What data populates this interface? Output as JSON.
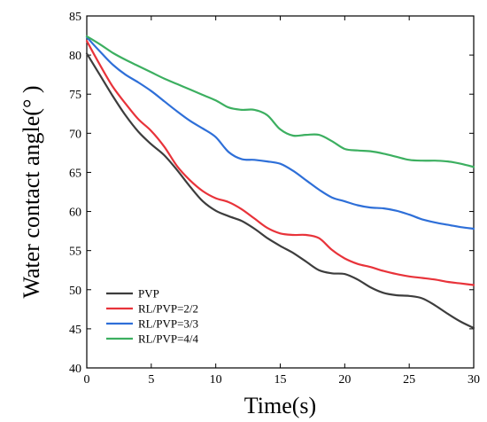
{
  "chart_data": {
    "type": "line",
    "xlabel": "Time(s)",
    "ylabel": "Water contact angle(°  )",
    "xlim": [
      0,
      30
    ],
    "ylim": [
      40,
      85
    ],
    "xticks": [
      0,
      5,
      10,
      15,
      20,
      25,
      30
    ],
    "yticks": [
      40,
      45,
      50,
      55,
      60,
      65,
      70,
      75,
      80,
      85
    ],
    "grid": false,
    "legend_position": "bottom-left",
    "series": [
      {
        "name": "PVP",
        "color": "#3d3d3d",
        "x": [
          0,
          1,
          2,
          3,
          4,
          5,
          6,
          7,
          8,
          9,
          10,
          11,
          12,
          13,
          14,
          15,
          16,
          17,
          18,
          19,
          20,
          21,
          22,
          23,
          24,
          25,
          26,
          27,
          28,
          29,
          30
        ],
        "y": [
          80.2,
          77.5,
          74.8,
          72.3,
          70.2,
          68.6,
          67.2,
          65.3,
          63.2,
          61.3,
          60.1,
          59.4,
          58.8,
          57.8,
          56.6,
          55.6,
          54.7,
          53.6,
          52.5,
          52.1,
          52.0,
          51.3,
          50.3,
          49.6,
          49.3,
          49.2,
          48.9,
          48.0,
          46.9,
          45.9,
          45.1
        ]
      },
      {
        "name": "RL/PVP=2/2",
        "color": "#e8333a",
        "x": [
          0,
          1,
          2,
          3,
          4,
          5,
          6,
          7,
          8,
          9,
          10,
          11,
          12,
          13,
          14,
          15,
          16,
          17,
          18,
          19,
          20,
          21,
          22,
          23,
          24,
          25,
          26,
          27,
          28,
          29,
          30
        ],
        "y": [
          81.8,
          78.8,
          76.0,
          73.8,
          71.8,
          70.3,
          68.3,
          65.8,
          64.0,
          62.6,
          61.7,
          61.2,
          60.3,
          59.1,
          57.9,
          57.2,
          57.0,
          57.0,
          56.6,
          55.1,
          54.0,
          53.3,
          52.9,
          52.4,
          52.0,
          51.7,
          51.5,
          51.3,
          51.0,
          50.8,
          50.6
        ]
      },
      {
        "name": "RL/PVP=3/3",
        "color": "#2e6fd8",
        "x": [
          0,
          1,
          2,
          3,
          4,
          5,
          6,
          7,
          8,
          9,
          10,
          11,
          12,
          13,
          14,
          15,
          16,
          17,
          18,
          19,
          20,
          21,
          22,
          23,
          24,
          25,
          26,
          27,
          28,
          29,
          30
        ],
        "y": [
          82.3,
          80.5,
          78.8,
          77.5,
          76.5,
          75.4,
          74.1,
          72.8,
          71.6,
          70.6,
          69.5,
          67.6,
          66.7,
          66.6,
          66.4,
          66.1,
          65.2,
          64.0,
          62.8,
          61.8,
          61.3,
          60.8,
          60.5,
          60.4,
          60.1,
          59.6,
          59.0,
          58.6,
          58.3,
          58.0,
          57.8
        ]
      },
      {
        "name": "RL/PVP=4/4",
        "color": "#3caf60",
        "x": [
          0,
          1,
          2,
          3,
          4,
          5,
          6,
          7,
          8,
          9,
          10,
          11,
          12,
          13,
          14,
          15,
          16,
          17,
          18,
          19,
          20,
          21,
          22,
          23,
          24,
          25,
          26,
          27,
          28,
          29,
          30
        ],
        "y": [
          82.4,
          81.4,
          80.3,
          79.4,
          78.6,
          77.8,
          77.0,
          76.3,
          75.6,
          74.9,
          74.2,
          73.3,
          73.0,
          73.0,
          72.3,
          70.5,
          69.7,
          69.8,
          69.8,
          69.0,
          68.0,
          67.8,
          67.7,
          67.4,
          67.0,
          66.6,
          66.5,
          66.5,
          66.4,
          66.1,
          65.7
        ]
      }
    ]
  }
}
